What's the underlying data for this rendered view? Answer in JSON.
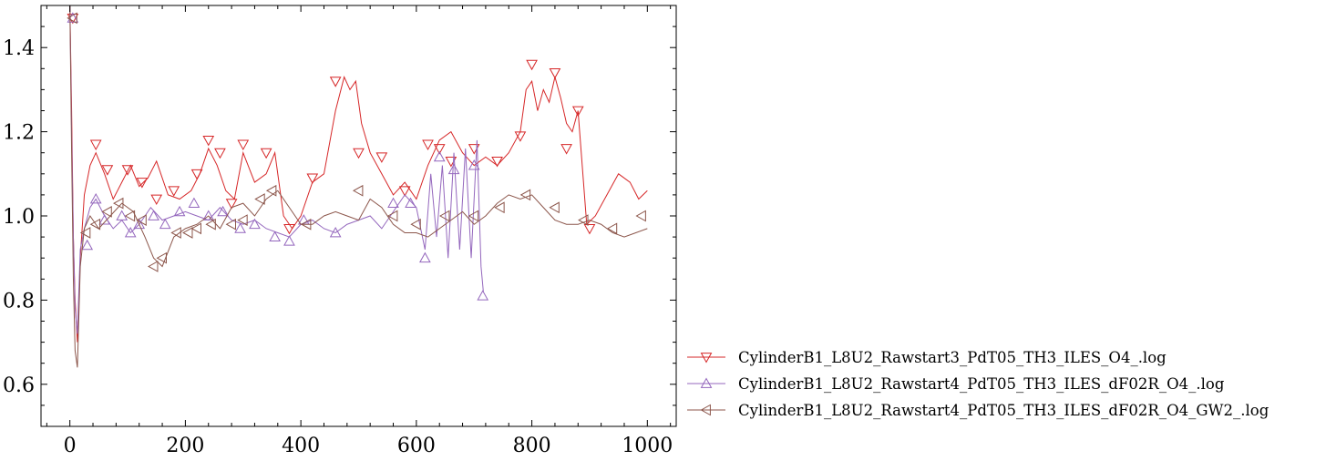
{
  "chart_data": {
    "type": "line",
    "title": "",
    "xlabel": "",
    "ylabel": "",
    "xlim": [
      -50,
      1050
    ],
    "ylim": [
      0.5,
      1.5
    ],
    "xticks": [
      0,
      200,
      400,
      600,
      800,
      1000
    ],
    "xtick_labels": [
      "0",
      "200",
      "400",
      "600",
      "800",
      "1000"
    ],
    "yticks": [
      0.6,
      0.8,
      1.0,
      1.2,
      1.4
    ],
    "ytick_labels": [
      "0.6",
      "0.8",
      "1.0",
      "1.2",
      "1.4"
    ],
    "grid": false,
    "legend_position": "bottom-right outside",
    "series": [
      {
        "name": "CylinderB1_L8U2_Rawstart3_PdT05_TH3_ILES_O4_.log",
        "color": "#d62728",
        "marker": "triangle-down",
        "x": [
          0,
          3,
          6,
          9,
          13,
          18,
          25,
          35,
          45,
          60,
          75,
          90,
          105,
          120,
          135,
          150,
          170,
          190,
          210,
          225,
          240,
          255,
          270,
          285,
          300,
          320,
          340,
          355,
          370,
          385,
          400,
          420,
          440,
          460,
          475,
          485,
          495,
          505,
          520,
          540,
          560,
          580,
          600,
          620,
          640,
          660,
          680,
          700,
          720,
          740,
          760,
          780,
          790,
          800,
          810,
          820,
          830,
          840,
          850,
          860,
          870,
          880,
          895,
          910,
          930,
          950,
          970,
          985,
          1000
        ],
        "y": [
          1.5,
          1.25,
          0.95,
          0.8,
          0.7,
          0.9,
          1.05,
          1.12,
          1.15,
          1.1,
          1.04,
          1.08,
          1.12,
          1.07,
          1.09,
          1.13,
          1.05,
          1.04,
          1.06,
          1.1,
          1.16,
          1.12,
          1.06,
          1.04,
          1.15,
          1.08,
          1.1,
          1.15,
          1.0,
          0.97,
          1.0,
          1.08,
          1.1,
          1.25,
          1.33,
          1.3,
          1.32,
          1.22,
          1.15,
          1.1,
          1.05,
          1.08,
          1.04,
          1.12,
          1.18,
          1.2,
          1.15,
          1.12,
          1.14,
          1.12,
          1.15,
          1.2,
          1.3,
          1.32,
          1.25,
          1.3,
          1.27,
          1.33,
          1.28,
          1.22,
          1.2,
          1.25,
          0.98,
          1.0,
          1.05,
          1.1,
          1.08,
          1.04,
          1.06
        ],
        "marker_x": [
          5,
          45,
          65,
          100,
          125,
          150,
          180,
          220,
          240,
          260,
          280,
          300,
          340,
          380,
          420,
          460,
          500,
          540,
          580,
          620,
          640,
          660,
          700,
          740,
          780,
          800,
          840,
          860,
          880,
          900
        ],
        "marker_y": [
          1.47,
          1.17,
          1.11,
          1.11,
          1.08,
          1.04,
          1.06,
          1.1,
          1.18,
          1.15,
          1.03,
          1.17,
          1.15,
          0.97,
          1.09,
          1.32,
          1.15,
          1.14,
          1.06,
          1.17,
          1.16,
          1.13,
          1.16,
          1.13,
          1.19,
          1.36,
          1.34,
          1.16,
          1.25,
          0.97
        ]
      },
      {
        "name": "CylinderB1_L8U2_Rawstart4_PdT05_TH3_ILES_dF02R_O4_.log",
        "color": "#9467bd",
        "marker": "triangle-up",
        "x": [
          0,
          3,
          6,
          9,
          13,
          18,
          25,
          35,
          45,
          60,
          75,
          90,
          105,
          120,
          140,
          160,
          180,
          200,
          220,
          240,
          260,
          280,
          300,
          320,
          340,
          360,
          380,
          400,
          420,
          440,
          460,
          480,
          500,
          520,
          540,
          560,
          580,
          600,
          615,
          625,
          635,
          645,
          655,
          665,
          675,
          685,
          695,
          705,
          712,
          716
        ],
        "y": [
          1.5,
          1.2,
          0.95,
          0.78,
          0.72,
          0.92,
          0.97,
          1.02,
          1.04,
          1.0,
          0.97,
          0.99,
          0.96,
          0.98,
          1.02,
          0.99,
          1.0,
          1.01,
          1.0,
          0.99,
          1.02,
          0.99,
          0.98,
          0.99,
          0.97,
          0.96,
          0.95,
          0.98,
          0.99,
          0.97,
          0.96,
          0.98,
          0.99,
          1.0,
          0.97,
          1.01,
          1.05,
          1.02,
          0.92,
          1.1,
          0.95,
          1.12,
          0.9,
          1.15,
          0.92,
          1.16,
          0.9,
          1.18,
          0.88,
          0.82
        ],
        "marker_x": [
          5,
          30,
          45,
          60,
          90,
          105,
          120,
          145,
          165,
          190,
          215,
          240,
          265,
          295,
          320,
          355,
          380,
          405,
          460,
          560,
          590,
          615,
          640,
          665,
          700,
          715
        ],
        "marker_y": [
          1.47,
          0.93,
          1.04,
          0.99,
          1.0,
          0.96,
          0.98,
          1.0,
          0.98,
          1.01,
          1.03,
          1.0,
          1.01,
          0.97,
          0.98,
          0.95,
          0.94,
          0.99,
          0.96,
          1.03,
          1.03,
          0.9,
          1.14,
          1.11,
          1.12,
          0.81
        ]
      },
      {
        "name": "CylinderB1_L8U2_Rawstart4_PdT05_TH3_ILES_dF02R_O4_GW2_.log",
        "color": "#8c564b",
        "marker": "triangle-left",
        "x": [
          0,
          3,
          6,
          9,
          13,
          18,
          25,
          35,
          50,
          70,
          90,
          110,
          130,
          145,
          160,
          180,
          200,
          220,
          240,
          260,
          280,
          300,
          320,
          340,
          360,
          380,
          400,
          420,
          440,
          460,
          480,
          500,
          520,
          540,
          560,
          580,
          600,
          620,
          640,
          660,
          680,
          700,
          720,
          740,
          760,
          780,
          800,
          820,
          840,
          860,
          880,
          900,
          920,
          940,
          960,
          980,
          1000
        ],
        "y": [
          1.5,
          1.15,
          0.85,
          0.68,
          0.64,
          0.88,
          0.97,
          1.0,
          0.97,
          1.0,
          1.03,
          1.01,
          0.95,
          0.9,
          0.88,
          0.95,
          0.97,
          0.98,
          1.0,
          0.97,
          1.02,
          1.03,
          1.0,
          1.04,
          1.06,
          1.02,
          0.98,
          0.98,
          1.0,
          1.01,
          1.0,
          0.99,
          1.04,
          1.02,
          0.98,
          0.96,
          0.96,
          0.95,
          0.97,
          0.99,
          1.01,
          0.98,
          1.0,
          1.03,
          1.05,
          1.04,
          1.05,
          1.02,
          0.99,
          0.98,
          0.98,
          0.99,
          0.98,
          0.96,
          0.95,
          0.96,
          0.97
        ],
        "marker_x": [
          5,
          28,
          45,
          65,
          85,
          105,
          125,
          145,
          160,
          185,
          205,
          220,
          245,
          280,
          300,
          330,
          350,
          410,
          500,
          560,
          600,
          650,
          700,
          745,
          790,
          840,
          890,
          940,
          990
        ],
        "marker_y": [
          1.47,
          0.96,
          0.98,
          1.01,
          1.03,
          1.0,
          0.99,
          0.88,
          0.9,
          0.96,
          0.96,
          0.97,
          0.98,
          0.98,
          0.99,
          1.04,
          1.06,
          0.98,
          1.06,
          1.0,
          0.98,
          1.0,
          1.0,
          1.02,
          1.05,
          1.02,
          0.99,
          0.97,
          1.0
        ]
      }
    ]
  }
}
